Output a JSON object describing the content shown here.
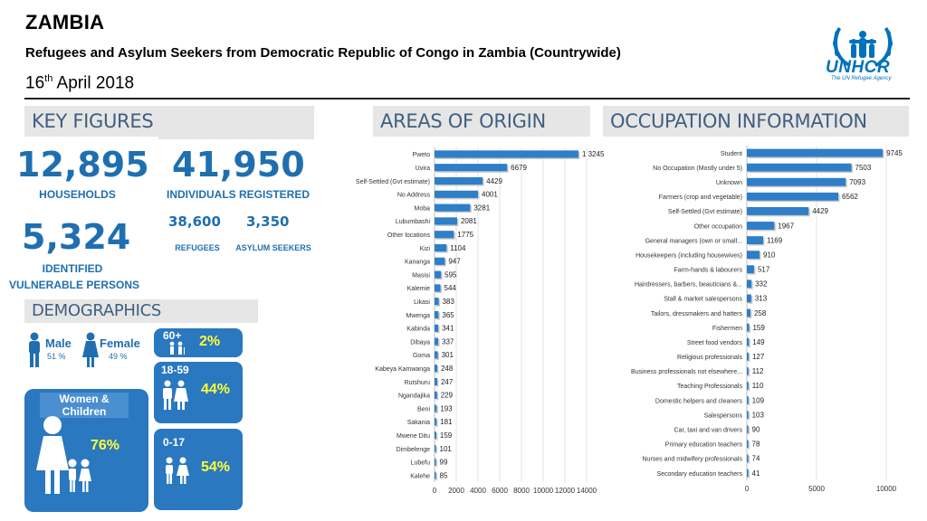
{
  "header": {
    "title": "ZAMBIA",
    "subtitle": "Refugees and Asylum Seekers from Democratic Republic of Congo in Zambia (Countrywide)",
    "date_day": "16",
    "date_suffix": "th",
    "date_rest": " April 2018",
    "logo_text": "UNHCR",
    "logo_tagline": "The UN Refugee Agency"
  },
  "key_figures": {
    "heading": "KEY FIGURES",
    "households_value": "12,895",
    "households_label": "HOUSEHOLDS",
    "individuals_value": "41,950",
    "individuals_label": "INDIVIDUALS REGISTERED",
    "refugees_value": "38,600",
    "refugees_label": "REFUGEES",
    "asylum_value": "3,350",
    "asylum_label": "ASYLUM SEEKERS",
    "vulnerable_value": "5,324",
    "vulnerable_label_1": "IDENTIFIED",
    "vulnerable_label_2": "VULNERABLE PERSONS"
  },
  "demographics": {
    "heading": "DEMOGRAPHICS",
    "male_label": "Male",
    "male_pct": "51 %",
    "female_label": "Female",
    "female_pct": "49 %",
    "age_60_label": "60+",
    "age_60_pct": "2%",
    "age_18_label": "18-59",
    "age_18_pct": "44%",
    "age_0_label": "0-17",
    "age_0_pct": "54%",
    "women_children_label": "Women & Children",
    "women_children_pct": "76%"
  },
  "colors": {
    "accent": "#1f6fb0",
    "box": "#2a78c0",
    "bar": "#2e7ec8",
    "highlight": "#ffff33"
  },
  "chart_data": [
    {
      "type": "bar",
      "orientation": "horizontal",
      "title": "AREAS OF ORIGIN",
      "categories": [
        "Pweto",
        "Uvira",
        "Self-Settled (Gvt estimate)",
        "No Address",
        "Moba",
        "Lubumbashi",
        "Other locations",
        "Kizi",
        "Kananga",
        "Masisi",
        "Kalemie",
        "Likasi",
        "Mwenga",
        "Kabinda",
        "Dibaya",
        "Goma",
        "Kabeya Kamwanga",
        "Rutshuru",
        "Ngandajika",
        "Beni",
        "Sakania",
        "Mwene Ditu",
        "Dimbelenge",
        "Lubefu",
        "Kalehe"
      ],
      "values": [
        13245,
        6679,
        4429,
        4001,
        3281,
        2081,
        1775,
        1104,
        947,
        595,
        544,
        383,
        365,
        341,
        337,
        301,
        248,
        247,
        229,
        193,
        181,
        159,
        101,
        99,
        85
      ],
      "value_labels": [
        "1 3245",
        "6679",
        "4429",
        "4001",
        "3281",
        "2081",
        "1775",
        "1104",
        "947",
        "595",
        "544",
        "383",
        "365",
        "341",
        "337",
        "301",
        "248",
        "247",
        "229",
        "193",
        "181",
        "159",
        "101",
        "99",
        "85"
      ],
      "xlim": [
        0,
        14000
      ],
      "xticks": [
        0,
        2000,
        4000,
        6000,
        8000,
        10000,
        12000,
        14000
      ],
      "grid": true
    },
    {
      "type": "bar",
      "orientation": "horizontal",
      "title": "OCCUPATION INFORMATION",
      "categories": [
        "Student",
        "No Occupation (Mostly under 5)",
        "Unknown",
        "Farmers (crop and vegetable)",
        "Self-Settled (Gvt estimate)",
        "Other occupation",
        "General managers (own or small...",
        "Housekeepers (including housewives)",
        "Farm-hands & labourers",
        "Hairdressers, barbers, beauticians &...",
        "Stall & market salespersons",
        "Tailors, dressmakers and hatters",
        "Fishermen",
        "Street food vendors",
        "Religious professionals",
        "Business professionals not elsewhere...",
        "Teaching Professionals",
        "Domestic helpers and cleaners",
        "Salespersons",
        "Car, taxi and van drivers",
        "Primary education teachers",
        "Nurses and midwifery professionals",
        "Secondary education teachers"
      ],
      "values": [
        9745,
        7503,
        7093,
        6562,
        4429,
        1967,
        1169,
        910,
        517,
        332,
        313,
        258,
        159,
        149,
        127,
        112,
        110,
        109,
        103,
        90,
        78,
        74,
        41
      ],
      "xlim": [
        0,
        10000
      ],
      "xticks": [
        0,
        5000,
        10000
      ],
      "grid": true
    }
  ]
}
